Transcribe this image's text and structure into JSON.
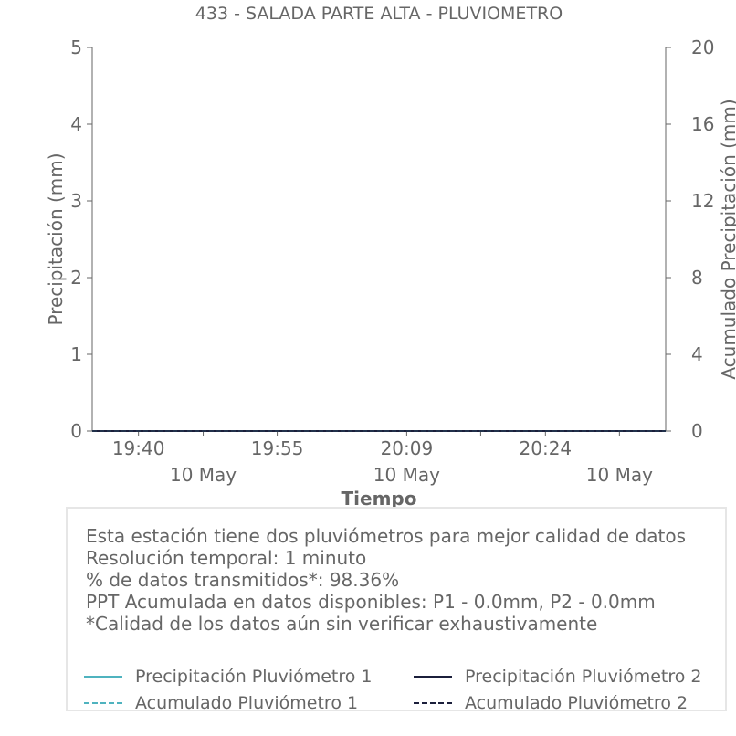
{
  "chart_data": {
    "type": "line",
    "title": "433 - SALADA PARTE ALTA - PLUVIOMETRO",
    "xlabel": "Tiempo",
    "ylabel": "Precipitación (mm)",
    "y2label": "Acumulado Precipitación (mm)",
    "ylim": [
      0,
      5
    ],
    "y2lim": [
      0,
      20
    ],
    "yticks": [
      "0",
      "1",
      "2",
      "3",
      "4",
      "5"
    ],
    "y2ticks": [
      "0",
      "4",
      "8",
      "12",
      "16",
      "20"
    ],
    "xrange": [
      "19:35",
      "20:37"
    ],
    "xticks": [
      {
        "at": "19:40",
        "time": "19:40",
        "date": ""
      },
      {
        "at": "19:47",
        "time": "",
        "date": "10 May"
      },
      {
        "at": "19:55",
        "time": "19:55",
        "date": ""
      },
      {
        "at": "20:02",
        "time": "",
        "date": ""
      },
      {
        "at": "20:09",
        "time": "20:09",
        "date": "10 May"
      },
      {
        "at": "20:17",
        "time": "",
        "date": ""
      },
      {
        "at": "20:24",
        "time": "20:24",
        "date": ""
      },
      {
        "at": "20:32",
        "time": "",
        "date": "10 May"
      }
    ],
    "x": [
      "19:35",
      "20:37"
    ],
    "series": [
      {
        "name": "Precipitación Pluviómetro 1",
        "axis": "left",
        "style": "solid",
        "color": "#4fb3bf",
        "values": [
          0,
          0
        ]
      },
      {
        "name": "Precipitación Pluviómetro 2",
        "axis": "left",
        "style": "solid",
        "color": "#1b1f3b",
        "values": [
          0,
          0
        ]
      },
      {
        "name": "Acumulado Pluviómetro 1",
        "axis": "right",
        "style": "dashed",
        "color": "#4fb3bf",
        "values": [
          0,
          0
        ]
      },
      {
        "name": "Acumulado Pluviómetro 2",
        "axis": "right",
        "style": "dashed",
        "color": "#1b1f3b",
        "values": [
          0,
          0
        ]
      }
    ],
    "grid": false,
    "legend": "bottom"
  },
  "info": {
    "lines": [
      "Esta estación tiene dos pluviómetros para mejor calidad de datos",
      "Resolución temporal: 1 minuto",
      "% de datos transmitidos*: 98.36%",
      "PPT Acumulada en datos disponibles: P1 - 0.0mm, P2 - 0.0mm",
      "*Calidad de los datos aún sin verificar exhaustivamente"
    ]
  },
  "colors": {
    "text": "#666666",
    "axis": "#666666",
    "box_border": "#e6e6e6"
  }
}
